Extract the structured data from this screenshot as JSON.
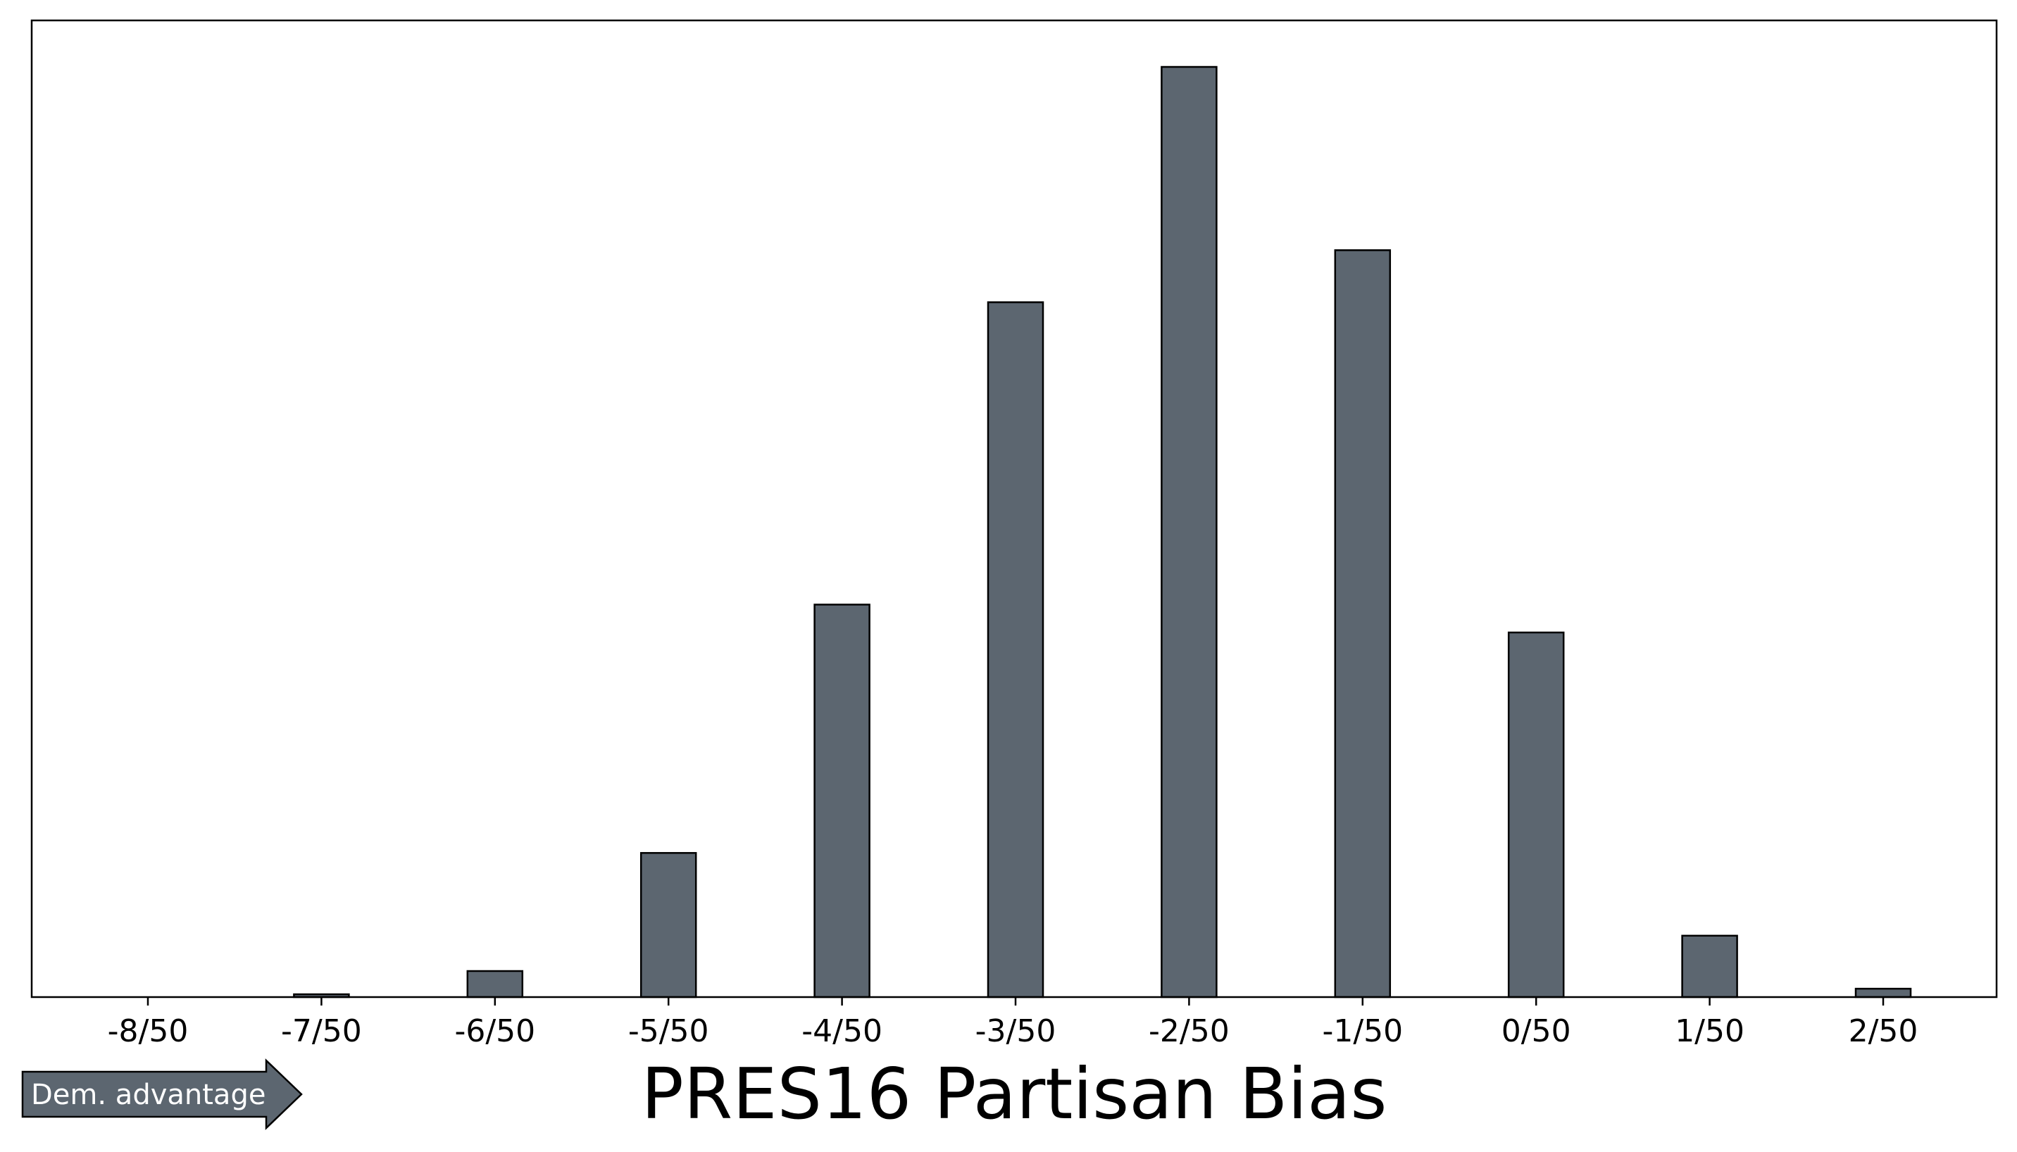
{
  "chart_data": {
    "type": "bar",
    "xlabel": "PRES16 Partisan Bias",
    "ylabel": "",
    "categories": [
      "-8/50",
      "-7/50",
      "-6/50",
      "-5/50",
      "-4/50",
      "-3/50",
      "-2/50",
      "-1/50",
      "0/50",
      "1/50",
      "2/50"
    ],
    "x": [
      -8,
      -7.5,
      -7,
      -6.5,
      -6,
      -5.5,
      -5,
      -4.5,
      -4,
      -3.5,
      -3,
      -2.5,
      -2,
      -1.5,
      -1,
      -0.5,
      0,
      0.5,
      1,
      1.5,
      2
    ],
    "values": [
      0.0,
      0.0,
      0.3,
      0.0,
      2.8,
      0.0,
      15.5,
      0.0,
      42.2,
      0.0,
      74.7,
      0.0,
      100.0,
      0.0,
      80.3,
      0.0,
      39.2,
      0.0,
      6.6,
      0.0,
      0.9
    ],
    "ylim": [
      0,
      105
    ],
    "grid": false,
    "bar_color": "#5c6670",
    "edge_color": "#000000",
    "y_ticks_shown": false
  },
  "annotation": {
    "label": "Dem. advantage",
    "icon": "right-arrow-icon",
    "color": "#5c6670"
  }
}
